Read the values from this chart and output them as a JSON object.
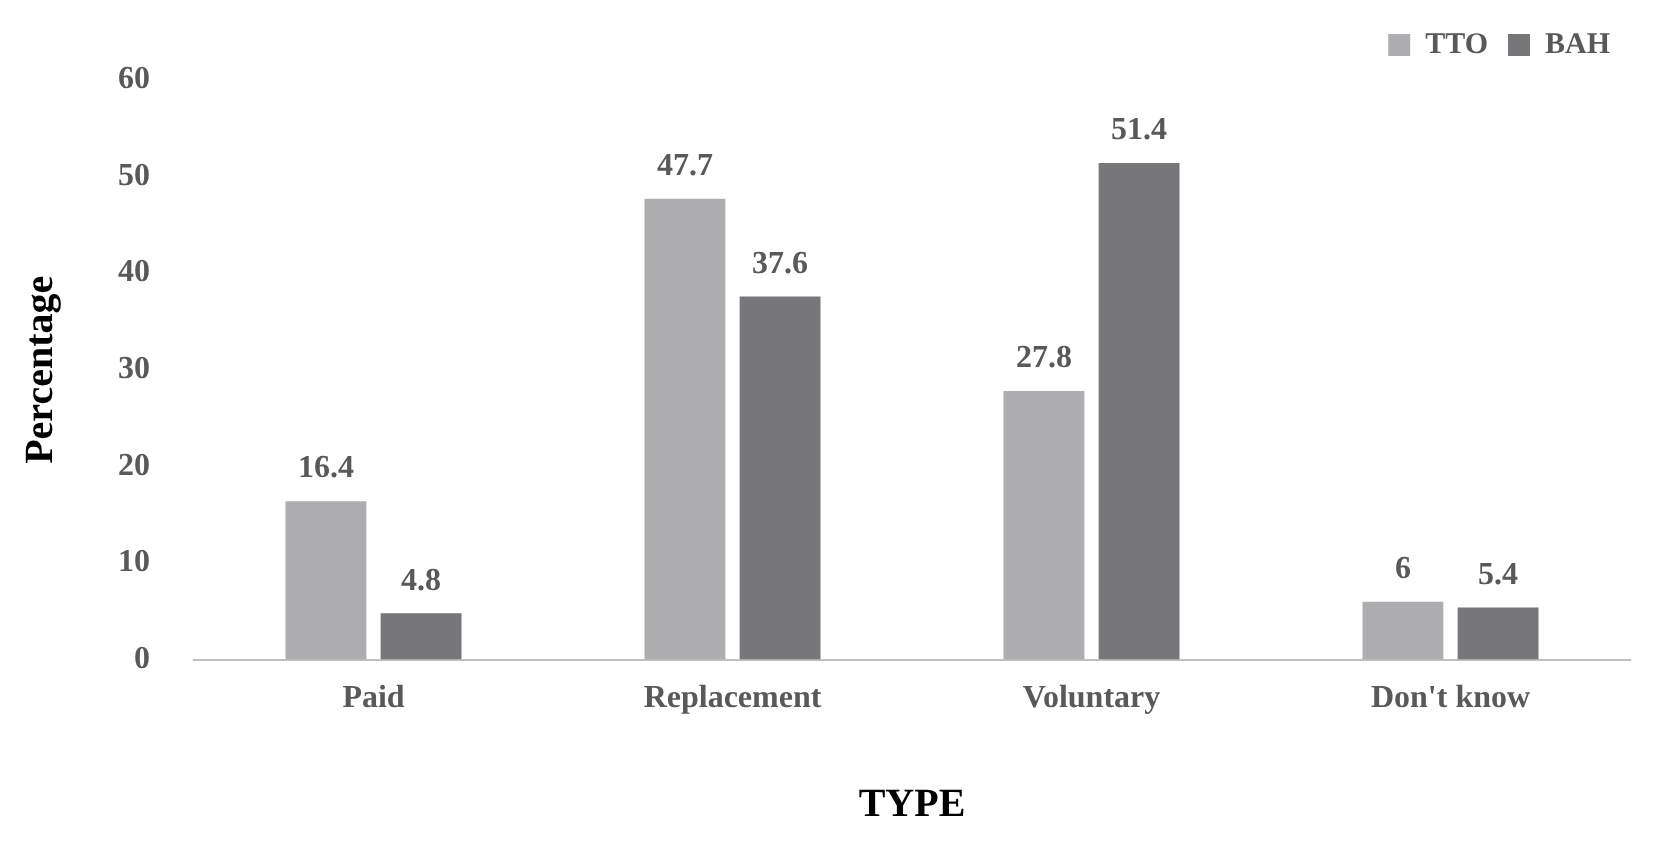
{
  "chart_data": {
    "type": "bar",
    "xlabel": "TYPE",
    "ylabel": "Percentage",
    "categories": [
      "Paid",
      "Replacement",
      "Voluntary",
      "Don't know"
    ],
    "series": [
      {
        "name": "TTO",
        "color": "#aeaeb0",
        "values": [
          16.4,
          47.7,
          27.8,
          6
        ]
      },
      {
        "name": "BAH",
        "color": "#77777a",
        "values": [
          4.8,
          37.6,
          51.4,
          5.4
        ]
      }
    ],
    "ylim": [
      0,
      60
    ],
    "yticks": [
      0,
      10,
      20,
      30,
      40,
      50,
      60
    ],
    "grid": false,
    "legend": "top right",
    "data_labels": true
  }
}
